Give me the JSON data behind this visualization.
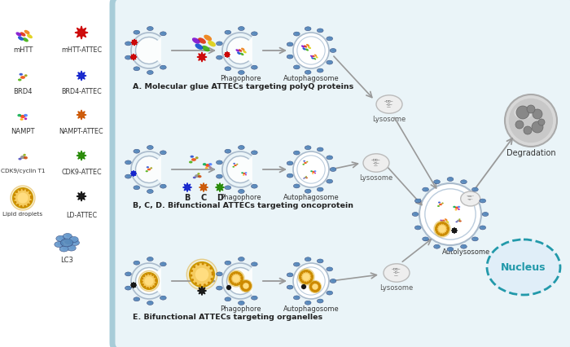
{
  "bg_outer": "#ffffff",
  "bg_cell_inner": "#eaf4f8",
  "border_color": "#a8ccd8",
  "section_A_label": "A. Molecular glue ATTECs targeting polyQ proteins",
  "section_B_label": "B, C, D. Bifunctional ATTECs targeting oncoprotein",
  "section_E_label": "E. Bifunctional ATTECs targeting organelles",
  "labels_phagophore": "Phagophore",
  "labels_autophagosome": "Autophagosome",
  "labels_lysosome": "Lysosome",
  "labels_autolysosome": "Autolysosome",
  "labels_degradation": "Degradation",
  "labels_nucleus": "Nucleus",
  "lc3_color": "#5588bb",
  "lc3_edge": "#334488",
  "arrow_color": "#999999",
  "lyso_fill": "#e5e5e5",
  "lyso_edge": "#aaaaaa",
  "degrad_fill": "#cccccc",
  "degrad_edge": "#999999",
  "nucleus_fill": "#ddeeff",
  "nucleus_edge": "#2299aa",
  "autolyso_fill": "#f5f5f5",
  "autolyso_edge": "#aaccdd"
}
